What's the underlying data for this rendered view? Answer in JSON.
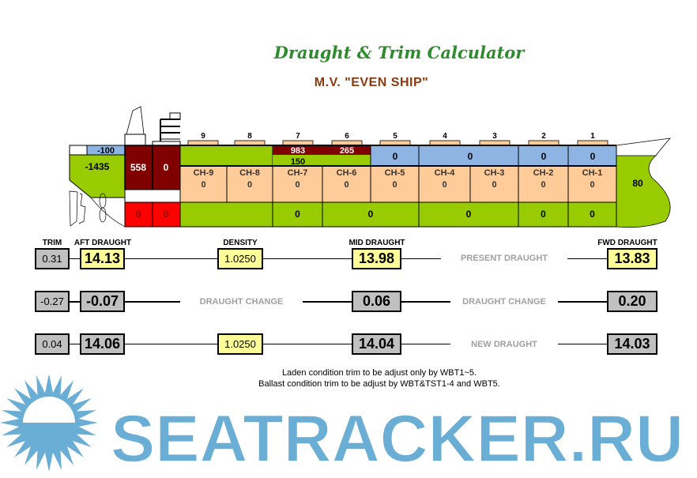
{
  "header": {
    "title": "Draught & Trim Calculator",
    "ship": "M.V. \"EVEN SHIP\""
  },
  "ship": {
    "aft_peak_top": "-100",
    "aft_peak": "-1435",
    "engine_tanks": [
      "558",
      "0"
    ],
    "engine_bottom": [
      "0",
      "0"
    ],
    "hatch_numbers": [
      "9",
      "8",
      "7",
      "6",
      "5",
      "4",
      "3",
      "2",
      "1"
    ],
    "top_tanks": {
      "h7_upper": "983",
      "h7_lower": "150",
      "h6_upper": "265",
      "h5": "0",
      "h4_3": "0",
      "h2": "0",
      "h1": "0"
    },
    "holds": [
      {
        "name": "CH-9",
        "value": "0"
      },
      {
        "name": "CH-8",
        "value": "0"
      },
      {
        "name": "CH-7",
        "value": "0"
      },
      {
        "name": "CH-6",
        "value": "0"
      },
      {
        "name": "CH-5",
        "value": "0"
      },
      {
        "name": "CH-4",
        "value": "0"
      },
      {
        "name": "CH-3",
        "value": "0"
      },
      {
        "name": "CH-2",
        "value": "0"
      },
      {
        "name": "CH-1",
        "value": "0"
      }
    ],
    "bottom_tanks": [
      "0",
      "0",
      "0",
      "0",
      "0"
    ],
    "fore_peak": "80"
  },
  "labels": {
    "trim": "TRIM",
    "aft": "AFT DRAUGHT",
    "density": "DENSITY",
    "mid": "MID DRAUGHT",
    "fwd": "FWD DRAUGHT"
  },
  "rows": [
    {
      "caption": "PRESENT DRAUGHT",
      "trim": "0.31",
      "aft": "14.13",
      "density": "1.0250",
      "mid": "13.98",
      "fwd": "13.83"
    },
    {
      "caption": "DRAUGHT CHANGE",
      "caption2": "DRAUGHT CHANGE",
      "trim": "-0.27",
      "aft": "-0.07",
      "mid": "0.06",
      "fwd": "0.20"
    },
    {
      "caption": "NEW DRAUGHT",
      "trim": "0.04",
      "aft": "14.06",
      "density": "1.0250",
      "mid": "14.04",
      "fwd": "14.03"
    }
  ],
  "notes": [
    "Laden condition trim to be adjust only by WBT1~5.",
    "Ballast condition trim to be adjust by WBT&TST1-4 and WBT5."
  ],
  "watermark": "SEATRACKER.RU",
  "colors": {
    "green": "#99cc00",
    "peach": "#ffcc99",
    "blue": "#8db4e2",
    "darkred": "#800000",
    "red": "#ff0000",
    "yellow": "#ffff99",
    "gray": "#c0c0c0",
    "watermark": "#6aaed6"
  }
}
